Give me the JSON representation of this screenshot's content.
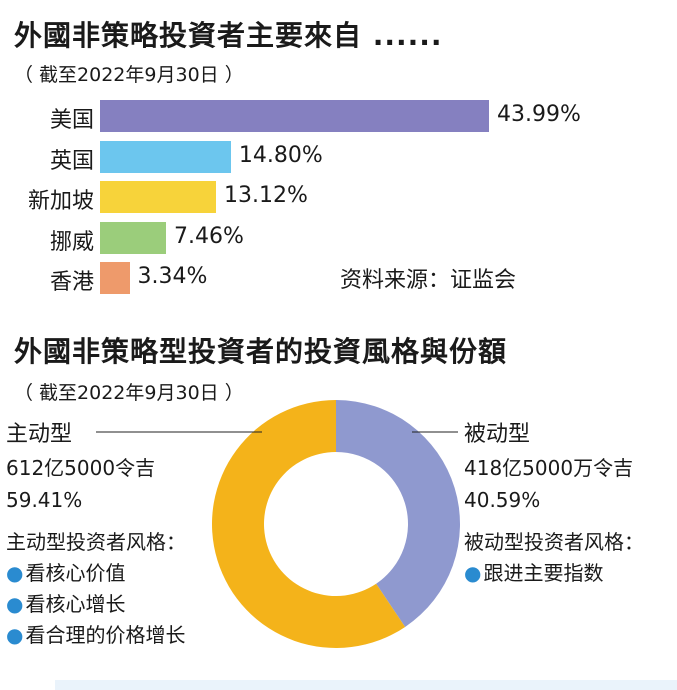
{
  "chart_data": [
    {
      "type": "bar",
      "orientation": "horizontal",
      "title": "外國非策略投資者主要來自 ......",
      "subtitle": "（ 截至2022年9月30日 ）",
      "categories": [
        "美国",
        "英国",
        "新加坡",
        "挪威",
        "香港"
      ],
      "values": [
        43.99,
        14.8,
        13.12,
        7.46,
        3.34
      ],
      "value_labels": [
        "43.99%",
        "14.80%",
        "13.12%",
        "7.46%",
        "3.34%"
      ],
      "colors": [
        "#8580c0",
        "#6cc6ee",
        "#f7d33a",
        "#9bcd7b",
        "#ee9a6b"
      ],
      "source": "资料来源：证监会"
    },
    {
      "type": "pie",
      "donut": true,
      "title": "外國非策略型投資者的投資風格與份額",
      "subtitle": "（ 截至2022年9月30日 ）",
      "slices": [
        {
          "label": "被动型",
          "amount": "418亿5000万令吉",
          "value": 40.59,
          "value_label": "40.59%",
          "color": "#8f99cf"
        },
        {
          "label": "主动型",
          "amount": "612亿5000令吉",
          "value": 59.41,
          "value_label": "59.41%",
          "color": "#f4b31a"
        }
      ],
      "active_style": {
        "heading": "主动型投资者风格：",
        "items": [
          "看核心价值",
          "看核心增长",
          "看合理的价格增长"
        ]
      },
      "passive_style": {
        "heading": "被动型投资者风格：",
        "items": [
          "跟进主要指数"
        ]
      },
      "bullet": "●"
    }
  ]
}
